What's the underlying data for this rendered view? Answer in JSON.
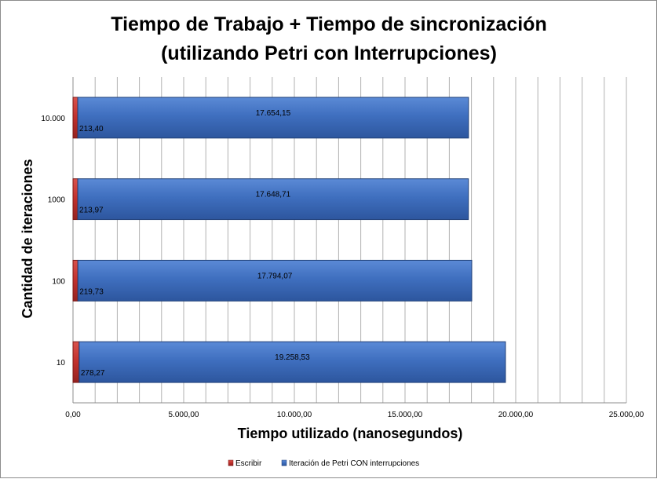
{
  "chart_data": {
    "type": "bar",
    "orientation": "horizontal",
    "stacked": true,
    "title_lines": [
      "Tiempo de Trabajo + Tiempo de sincronización",
      "(utilizando Petri con Interrupciones)"
    ],
    "xlabel": "Tiempo utilizado (nanosegundos)",
    "ylabel": "Cantidad de iteraciones",
    "categories": [
      "10.000",
      "1000",
      "100",
      "10"
    ],
    "xlim": [
      0,
      25000
    ],
    "xticks": [
      0,
      5000,
      10000,
      15000,
      20000,
      25000
    ],
    "xtick_labels": [
      "0,00",
      "5.000,00",
      "10.000,00",
      "15.000,00",
      "20.000,00",
      "25.000,00"
    ],
    "grid": "vertical",
    "legend_position": "bottom",
    "series": [
      {
        "name": "Escribir",
        "color": "#c0302c",
        "values": [
          213.4,
          213.97,
          219.73,
          278.27
        ],
        "labels": [
          "213,40",
          "213,97",
          "219,73",
          "278,27"
        ]
      },
      {
        "name": "Iteración de Petri CON interrupciones",
        "color": "#3f6fbf",
        "values": [
          17654.15,
          17648.71,
          17794.07,
          19258.53
        ],
        "labels": [
          "17.654,15",
          "17.648,71",
          "17.794,07",
          "19.258,53"
        ]
      }
    ]
  }
}
